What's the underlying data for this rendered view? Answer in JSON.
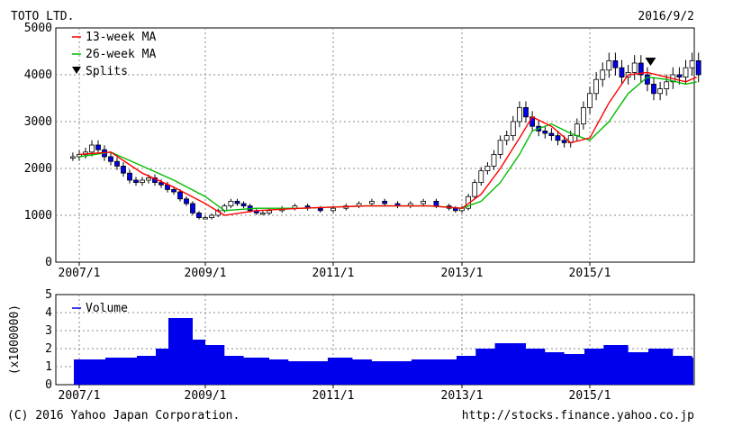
{
  "header": {
    "company": "TOTO LTD.",
    "date": "2016/9/2"
  },
  "footer": {
    "copyright": "(C) 2016 Yahoo Japan Corporation.",
    "url": "http://stocks.finance.yahoo.co.jp"
  },
  "colors": {
    "candle_up": "#ffffff",
    "candle_down": "#0000ee",
    "ma13": "#ff0000",
    "ma26": "#00bb00",
    "volume": "#0000ee",
    "grid": "#888888"
  },
  "chart_data": [
    {
      "type": "candlestick",
      "title": "",
      "x_tick_labels": [
        "2007/1",
        "2009/1",
        "2011/1",
        "2013/1",
        "2015/1"
      ],
      "y_tick_labels": [
        "0",
        "1000",
        "2000",
        "3000",
        "4000",
        "5000"
      ],
      "ylim": [
        0,
        5000
      ],
      "grid": true,
      "legend": "top-left",
      "legend_entries": [
        "13-week MA",
        "26-week MA",
        "Splits"
      ],
      "series": [
        {
          "name": "Close",
          "x": [
            2006.9,
            2007.0,
            2007.1,
            2007.2,
            2007.3,
            2007.4,
            2007.5,
            2007.6,
            2007.7,
            2007.8,
            2007.9,
            2008.0,
            2008.1,
            2008.2,
            2008.3,
            2008.4,
            2008.5,
            2008.6,
            2008.7,
            2008.8,
            2008.9,
            2009.0,
            2009.1,
            2009.2,
            2009.3,
            2009.4,
            2009.5,
            2009.6,
            2009.7,
            2009.8,
            2009.9,
            2010.0,
            2010.2,
            2010.4,
            2010.6,
            2010.8,
            2011.0,
            2011.2,
            2011.4,
            2011.6,
            2011.8,
            2012.0,
            2012.2,
            2012.4,
            2012.6,
            2012.8,
            2012.9,
            2013.0,
            2013.1,
            2013.2,
            2013.3,
            2013.4,
            2013.5,
            2013.6,
            2013.7,
            2013.8,
            2013.9,
            2014.0,
            2014.1,
            2014.2,
            2014.3,
            2014.4,
            2014.5,
            2014.6,
            2014.7,
            2014.8,
            2014.9,
            2015.0,
            2015.1,
            2015.2,
            2015.3,
            2015.4,
            2015.5,
            2015.6,
            2015.7,
            2015.8,
            2015.9,
            2016.0,
            2016.1,
            2016.2,
            2016.3,
            2016.4,
            2016.5,
            2016.6,
            2016.7
          ],
          "values": [
            2250,
            2300,
            2350,
            2500,
            2400,
            2250,
            2150,
            2050,
            1900,
            1750,
            1700,
            1750,
            1800,
            1700,
            1650,
            1550,
            1500,
            1350,
            1250,
            1050,
            950,
            950,
            1000,
            1100,
            1200,
            1300,
            1250,
            1200,
            1100,
            1050,
            1050,
            1100,
            1150,
            1200,
            1150,
            1100,
            1150,
            1200,
            1250,
            1300,
            1250,
            1200,
            1250,
            1300,
            1200,
            1150,
            1100,
            1150,
            1400,
            1700,
            1950,
            2050,
            2300,
            2600,
            2700,
            3000,
            3300,
            3100,
            2900,
            2800,
            2750,
            2700,
            2600,
            2550,
            2700,
            2950,
            3300,
            3600,
            3900,
            4100,
            4300,
            4150,
            3950,
            4050,
            4250,
            4000,
            3800,
            3600,
            3700,
            3850,
            4000,
            3950,
            4150,
            4300,
            4000
          ]
        },
        {
          "name": "13-week MA",
          "x": [
            2007.0,
            2007.5,
            2008.0,
            2008.5,
            2009.0,
            2009.3,
            2009.8,
            2010.5,
            2011.5,
            2012.5,
            2013.0,
            2013.3,
            2013.6,
            2013.9,
            2014.1,
            2014.4,
            2014.7,
            2015.0,
            2015.3,
            2015.6,
            2015.9,
            2016.2,
            2016.5,
            2016.67
          ],
          "values": [
            2300,
            2350,
            1900,
            1600,
            1250,
            1000,
            1100,
            1150,
            1200,
            1200,
            1150,
            1450,
            2000,
            2650,
            3100,
            2900,
            2550,
            2650,
            3400,
            4000,
            4050,
            3950,
            3850,
            3950
          ]
        },
        {
          "name": "26-week MA",
          "x": [
            2007.0,
            2007.5,
            2008.0,
            2008.5,
            2009.0,
            2009.3,
            2009.8,
            2010.5,
            2011.5,
            2012.5,
            2013.0,
            2013.3,
            2013.6,
            2013.9,
            2014.1,
            2014.4,
            2014.7,
            2015.0,
            2015.3,
            2015.6,
            2015.9,
            2016.2,
            2016.5,
            2016.67
          ],
          "values": [
            2250,
            2350,
            2050,
            1750,
            1400,
            1100,
            1150,
            1150,
            1200,
            1200,
            1150,
            1300,
            1700,
            2300,
            2800,
            2950,
            2750,
            2600,
            3000,
            3600,
            3950,
            3900,
            3800,
            3850
          ]
        }
      ],
      "splits": [
        {
          "x": 2015.95
        }
      ]
    },
    {
      "type": "bar",
      "title": "",
      "ylabel": "(x1000000)",
      "y_tick_labels": [
        "0",
        "1",
        "2",
        "3",
        "4",
        "5"
      ],
      "ylim": [
        0,
        5
      ],
      "grid": true,
      "legend": "top-left",
      "legend_entries": [
        "Volume"
      ],
      "x_tick_labels": [
        "2007/1",
        "2009/1",
        "2011/1",
        "2013/1",
        "2015/1"
      ],
      "x": [
        2007.0,
        2007.5,
        2008.0,
        2008.3,
        2008.5,
        2008.8,
        2009.0,
        2009.3,
        2009.6,
        2010.0,
        2010.3,
        2010.6,
        2011.0,
        2011.3,
        2011.6,
        2012.0,
        2012.3,
        2012.6,
        2013.0,
        2013.3,
        2013.6,
        2014.0,
        2014.3,
        2014.6,
        2015.0,
        2015.3,
        2015.6,
        2016.0,
        2016.3,
        2016.6
      ],
      "values": [
        1.4,
        1.5,
        1.6,
        2.0,
        3.7,
        2.5,
        2.2,
        1.6,
        1.5,
        1.4,
        1.3,
        1.3,
        1.5,
        1.4,
        1.3,
        1.3,
        1.4,
        1.4,
        1.6,
        2.0,
        2.3,
        2.0,
        1.8,
        1.7,
        2.0,
        2.2,
        1.8,
        2.0,
        1.6,
        1.5
      ]
    }
  ]
}
